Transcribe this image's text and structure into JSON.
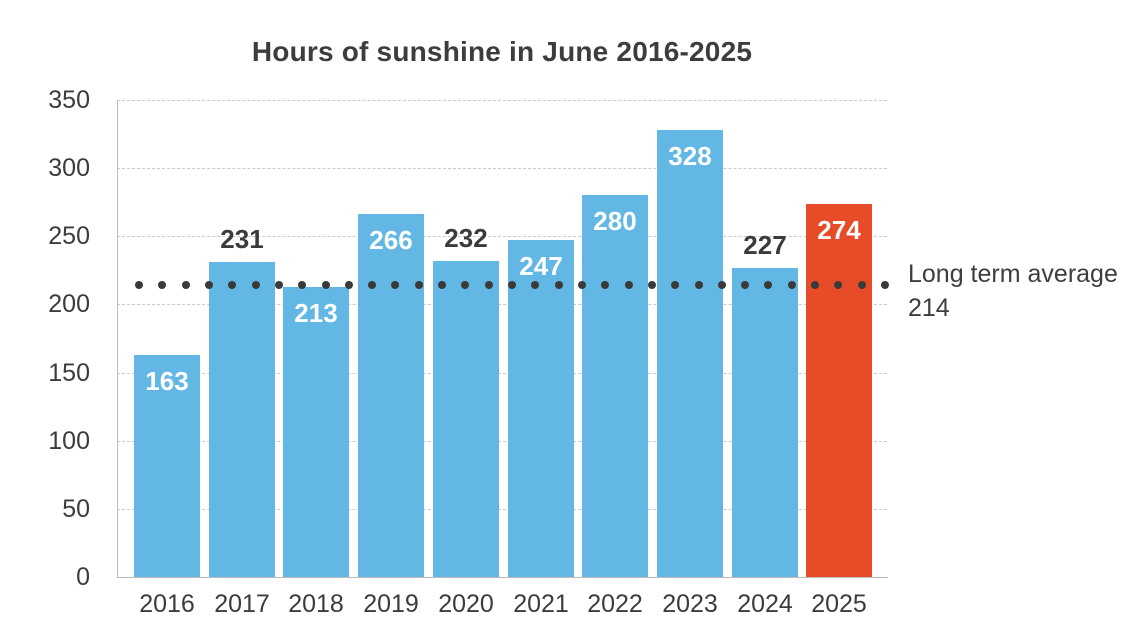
{
  "chart_data": {
    "type": "bar",
    "title": "Hours of sunshine in June 2016-2025",
    "categories": [
      "2016",
      "2017",
      "2018",
      "2019",
      "2020",
      "2021",
      "2022",
      "2023",
      "2024",
      "2025"
    ],
    "values": [
      163,
      231,
      213,
      266,
      232,
      247,
      280,
      328,
      227,
      274
    ],
    "value_label_positions": [
      "inside",
      "above",
      "inside",
      "inside",
      "above",
      "inside",
      "inside",
      "inside",
      "above",
      "inside"
    ],
    "xlabel": "",
    "ylabel": "",
    "ylim": [
      0,
      350
    ],
    "yticks": [
      0,
      50,
      100,
      150,
      200,
      250,
      300,
      350
    ],
    "grid": {
      "horizontal": true,
      "style": "dashed",
      "color": "#c9c9c9"
    },
    "legend_position": "right of plot at average line",
    "bar_color": "#62b7e4",
    "highlight_bar": {
      "category": "2025",
      "index": 9,
      "color": "#e74b27"
    },
    "inside_label_color": "#ffffff",
    "text_color": "#3c3c3c",
    "average_line": {
      "value": 214,
      "style": "dotted",
      "dot_color": "#3a3a3a",
      "label": "Long term average",
      "value_label": "214"
    }
  }
}
